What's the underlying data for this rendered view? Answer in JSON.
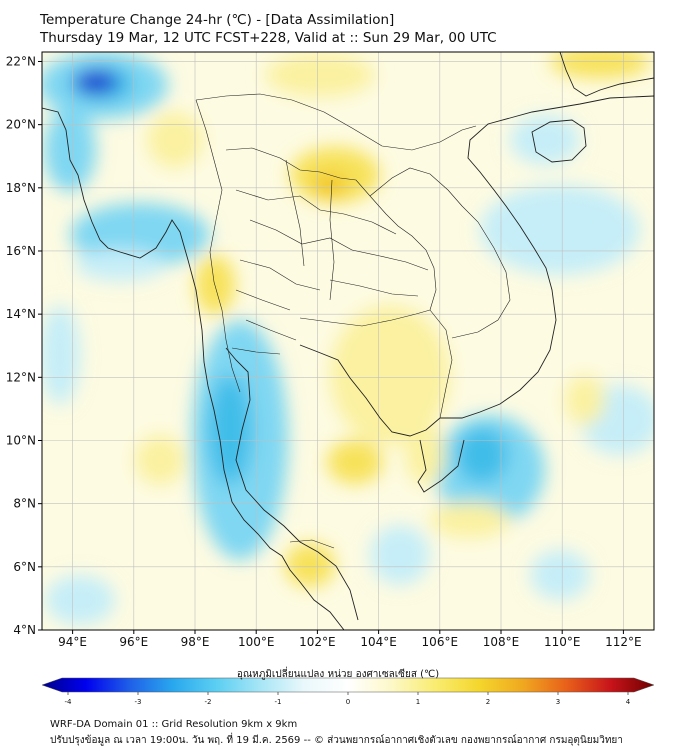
{
  "header": {
    "title_line1": "Temperature Change 24-hr (℃) - [Data Assimilation]",
    "title_line2": "Thursday 19 Mar, 12 UTC FCST+228, Valid at :: Sun 29 Mar, 00 UTC"
  },
  "map": {
    "lat_labels": [
      "22°N",
      "20°N",
      "18°N",
      "16°N",
      "14°N",
      "12°N",
      "10°N",
      "8°N",
      "6°N",
      "4°N"
    ],
    "lon_labels": [
      "94°E",
      "96°E",
      "98°E",
      "100°E",
      "102°E",
      "104°E",
      "106°E",
      "108°E",
      "110°E",
      "112°E"
    ],
    "lat_values": [
      22,
      20,
      18,
      16,
      14,
      12,
      10,
      8,
      6,
      4
    ],
    "lon_values": [
      94,
      96,
      98,
      100,
      102,
      104,
      106,
      108,
      110,
      112
    ],
    "lon_range": [
      93,
      113
    ],
    "lat_range": [
      4,
      22.3
    ],
    "colors": {
      "background": "#fdfbe2",
      "warm_light": "#fbf1a0",
      "warm_mid": "#f7e25a",
      "warm_strong": "#f2c624",
      "cool_light": "#c6eef8",
      "cool_mid": "#7fd7f2",
      "cool_strong": "#3fbde9",
      "cold_core": "#1f3ad0",
      "grid": "#bfbfbf",
      "coast": "#222222"
    }
  },
  "colorbar": {
    "label": "อุณหภูมิเปลี่ยนแปลง หน่วย องศาเซลเซียส (℃)",
    "tick_labels": [
      "-4",
      "-3",
      "-2",
      "-1",
      "0",
      "1",
      "2",
      "3",
      "4"
    ],
    "tick_values": [
      -4,
      -3,
      -2,
      -1,
      0,
      1,
      2,
      3,
      4
    ],
    "stops": [
      "#00008b",
      "#0000ee",
      "#1f5fe8",
      "#29a8ee",
      "#5ccff2",
      "#a8e6f6",
      "#eaf8fb",
      "#ffffff",
      "#fdf8c8",
      "#f9ec70",
      "#f4d62c",
      "#f0a820",
      "#e8601a",
      "#c8141a",
      "#6e0000"
    ]
  },
  "footer": {
    "line1": "WRF-DA Domain 01 :: Grid Resolution 9km x 9km",
    "line2": "ปรับปรุงข้อมูล ณ เวลา 19:00น. วัน พฤ. ที่ 19 มี.ค. 2569 -- © ส่วนพยากรณ์อากาศเชิงตัวเลข กองพยากรณ์อากาศ กรมอุตุนิยมวิทยา"
  }
}
